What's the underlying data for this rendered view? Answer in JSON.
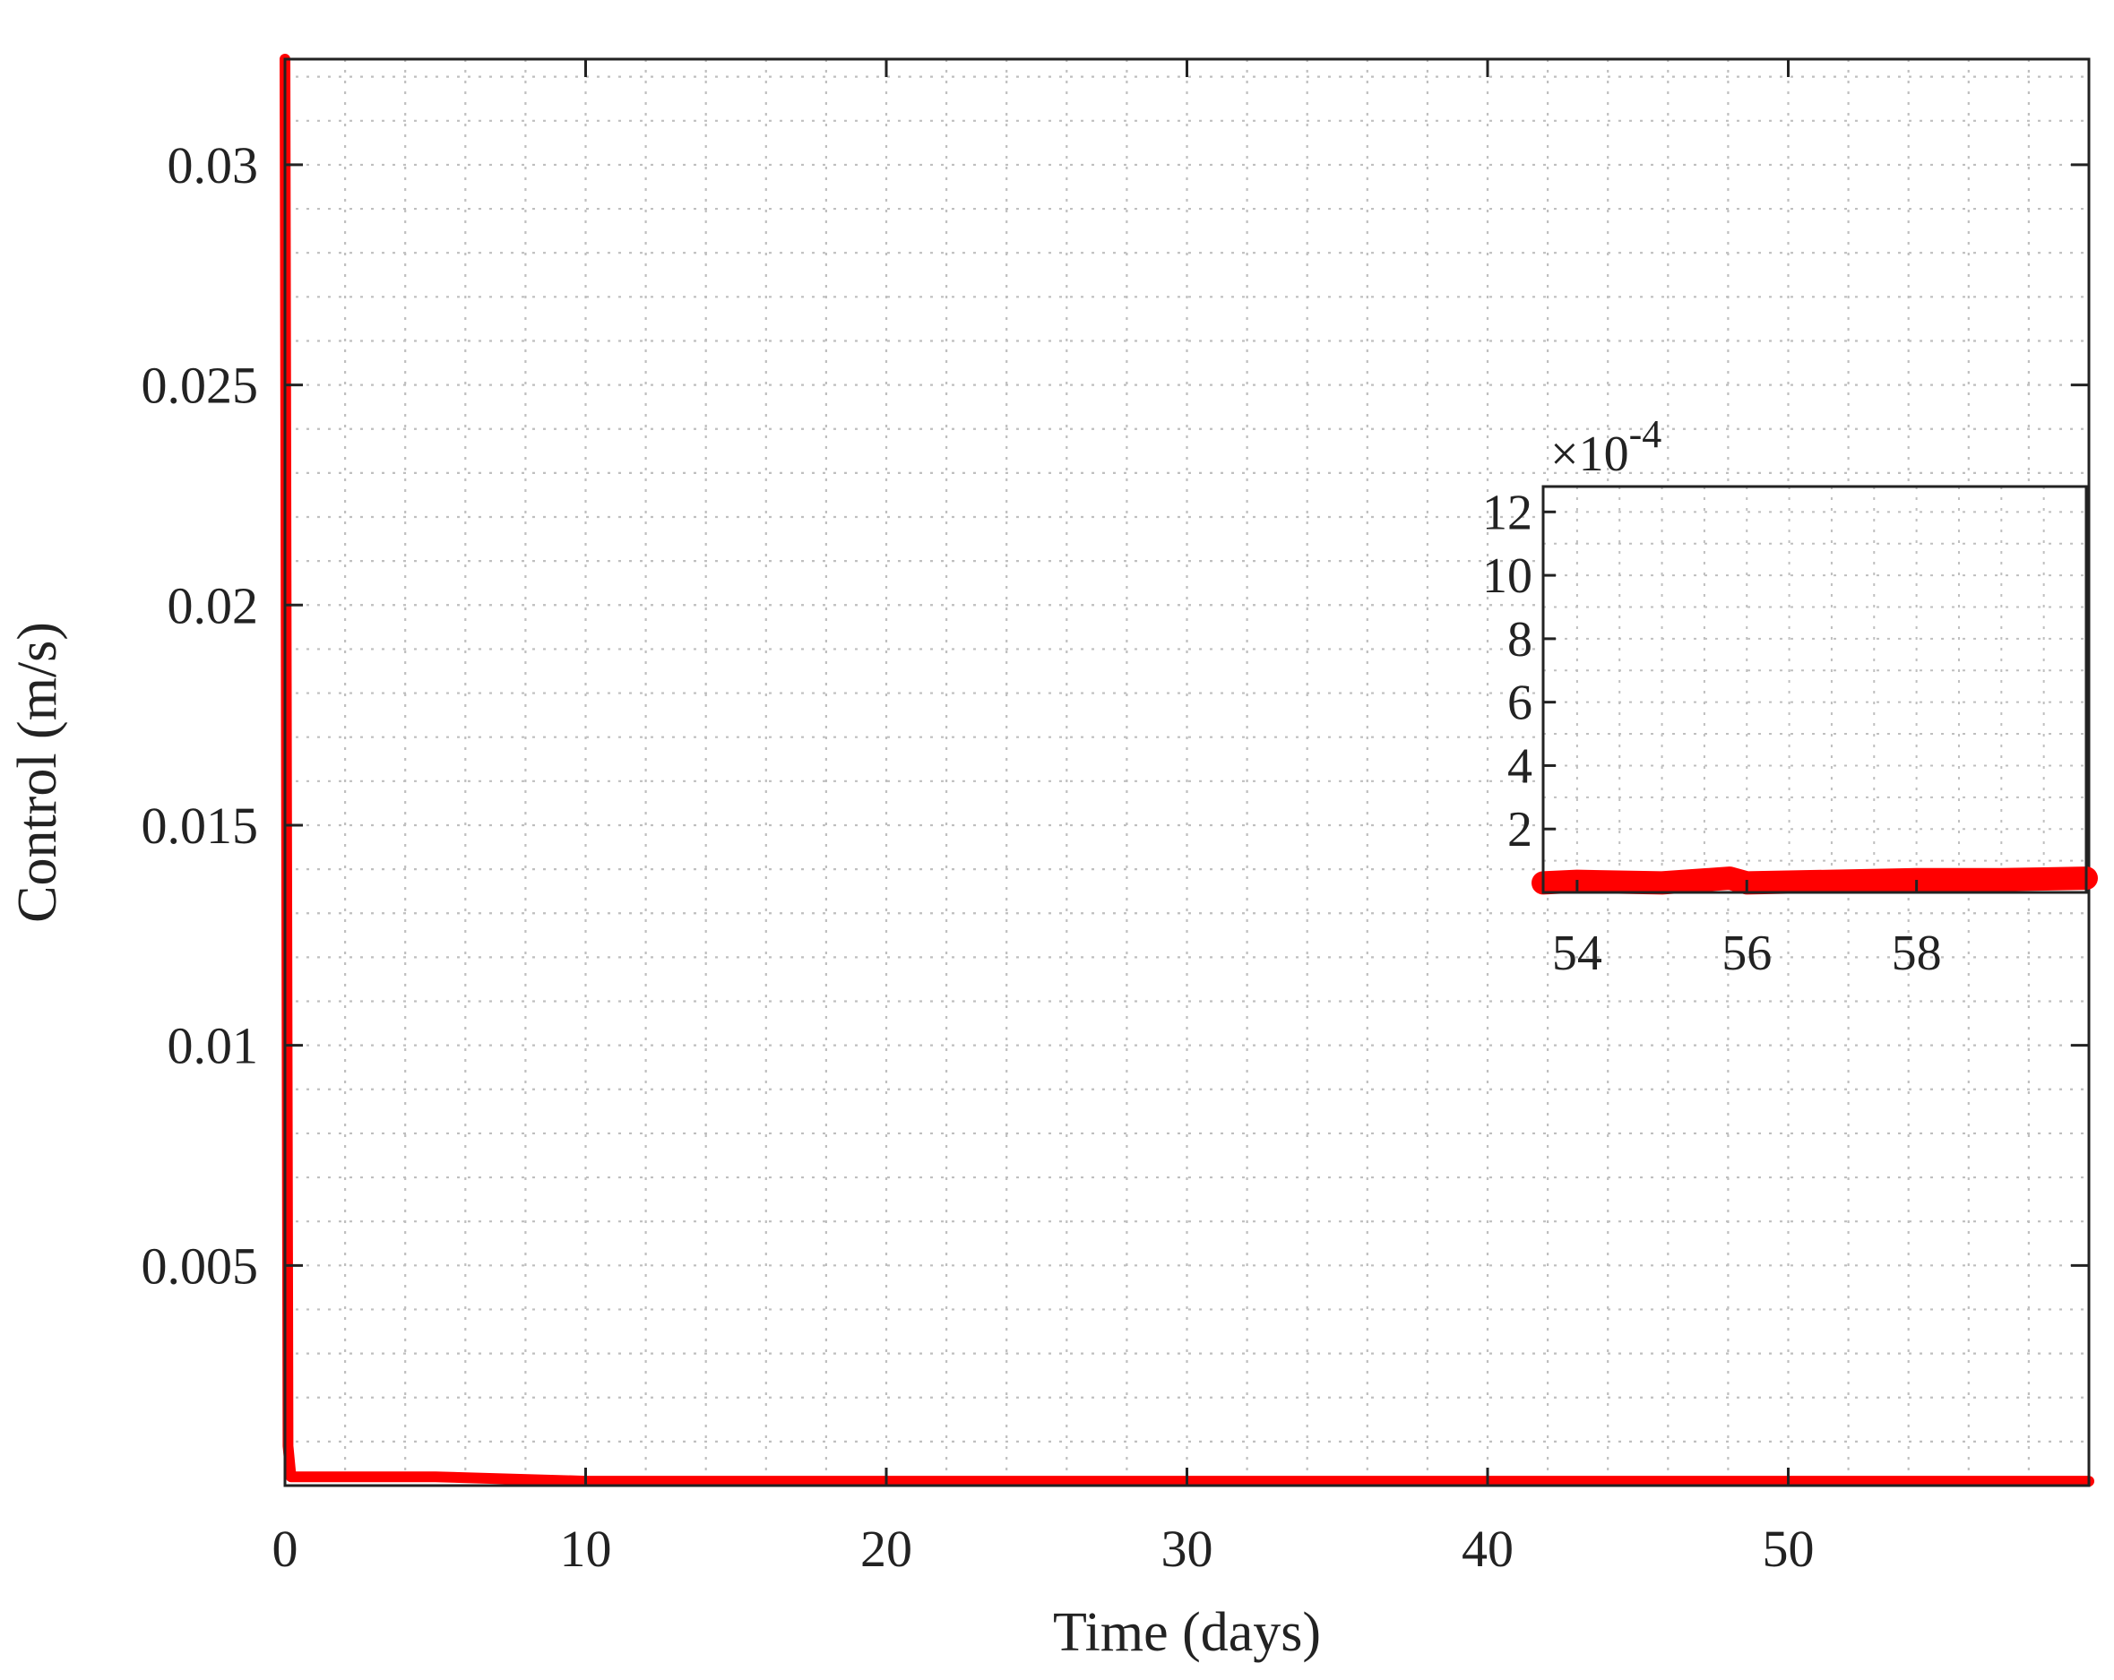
{
  "colors": {
    "series": "#ff0000",
    "axis": "#222222",
    "grid": "#bfbfbf",
    "background": "#ffffff"
  },
  "chart_data": [
    {
      "type": "line",
      "xlabel": "Time (days)",
      "ylabel": "Control (m/s)",
      "xlim": [
        0,
        60
      ],
      "ylim": [
        0,
        0.0324
      ],
      "xticks": [
        0,
        10,
        20,
        30,
        40,
        50
      ],
      "xtick_labels": [
        "0",
        "10",
        "20",
        "30",
        "40",
        "50"
      ],
      "yticks": [
        0.005,
        0.01,
        0.015,
        0.02,
        0.025,
        0.03
      ],
      "ytick_labels": [
        "0.005",
        "0.01",
        "0.015",
        "0.02",
        "0.025",
        "0.03"
      ],
      "grid": true,
      "minor_grid": true,
      "series": [
        {
          "x": [
            0,
            0.05,
            0.1,
            0.2,
            2.0,
            5.0,
            10,
            20,
            30,
            31.5,
            40,
            50,
            60
          ],
          "y": [
            0.0324,
            0.016,
            0.0009,
            0.0002,
            0.0002,
            0.0002,
            0.0001,
            0.0001,
            0.0001,
            0.0001,
            0.0001,
            0.0001,
            0.0001
          ]
        }
      ]
    },
    {
      "type": "line",
      "inset": true,
      "xlim": [
        53.6,
        60
      ],
      "ylim": [
        0,
        12.8
      ],
      "y_multiplier": "×10",
      "y_exponent": "-4",
      "xticks": [
        54,
        56,
        58
      ],
      "xtick_labels": [
        "54",
        "56",
        "58"
      ],
      "yticks": [
        2,
        4,
        6,
        8,
        10,
        12
      ],
      "ytick_labels": [
        "2",
        "4",
        "6",
        "8",
        "10",
        "12"
      ],
      "grid": true,
      "series": [
        {
          "x": [
            53.6,
            54,
            55,
            55.8,
            56,
            57,
            58,
            59,
            60
          ],
          "y": [
            0.3,
            0.35,
            0.3,
            0.45,
            0.3,
            0.35,
            0.4,
            0.4,
            0.45
          ]
        }
      ]
    }
  ]
}
